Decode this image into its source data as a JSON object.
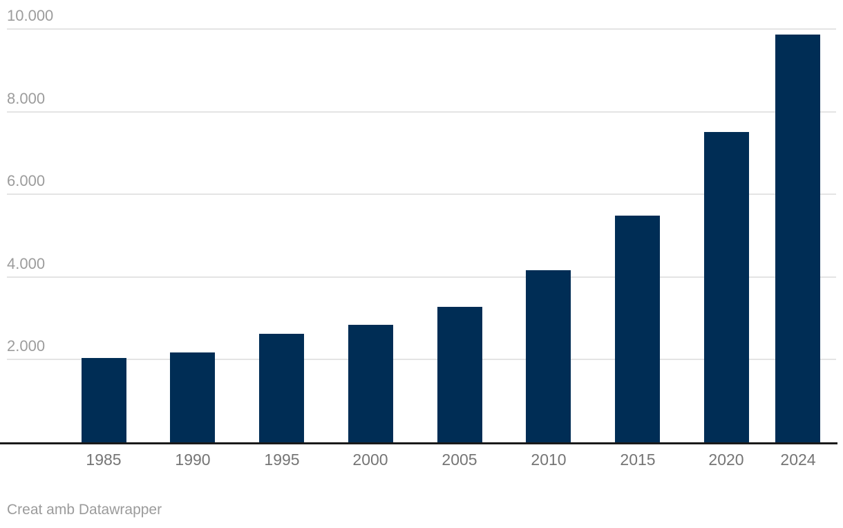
{
  "chart_data": {
    "type": "bar",
    "title": "",
    "xlabel": "",
    "ylabel": "",
    "categories": [
      "1985",
      "1990",
      "1995",
      "2000",
      "2005",
      "2010",
      "2015",
      "2020",
      "2024"
    ],
    "x_years": [
      1985,
      1990,
      1995,
      2000,
      2005,
      2010,
      2015,
      2020,
      2024
    ],
    "values": [
      2040,
      2180,
      2620,
      2840,
      3270,
      4160,
      5480,
      7500,
      9870
    ],
    "ylim": [
      0,
      10000
    ],
    "yticks": [
      2000,
      4000,
      6000,
      8000,
      10000
    ],
    "ytick_labels": [
      "2.000",
      "4.000",
      "6.000",
      "8.000",
      "10.000"
    ],
    "grid": true,
    "legend_position": "none"
  },
  "footer": {
    "attribution": "Creat amb Datawrapper"
  },
  "colors": {
    "bar": "#002d55",
    "gridline": "#e4e4e4",
    "axis_line": "#1a1a1a",
    "y_tick_text": "#9c9c9c",
    "x_tick_text": "#757575",
    "footer_text": "#9b9b9b",
    "background": "#ffffff"
  }
}
